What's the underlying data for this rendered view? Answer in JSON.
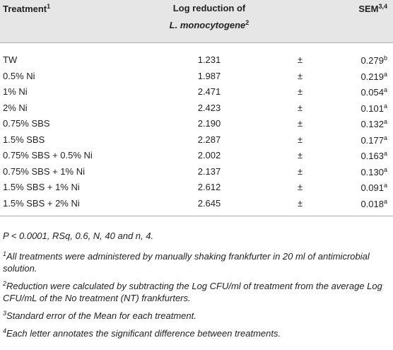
{
  "header": {
    "treatment": "Treatment",
    "treatment_note": "1",
    "log_reduction": [
      "Log reduction of",
      "L. monocytogene"
    ],
    "log_note": "2",
    "sem": "SEM",
    "sem_note": "3,4"
  },
  "table": {
    "rows": [
      {
        "treatment": "TW",
        "log_reduction": "1.231",
        "pm": "±",
        "sem": "0.279",
        "letter": "b"
      },
      {
        "treatment": "0.5% Ni",
        "log_reduction": "1.987",
        "pm": "±",
        "sem": "0.219",
        "letter": "a"
      },
      {
        "treatment": "1% Ni",
        "log_reduction": "2.471",
        "pm": "±",
        "sem": "0.054",
        "letter": "a"
      },
      {
        "treatment": "2% Ni",
        "log_reduction": "2.423",
        "pm": "±",
        "sem": "0.101",
        "letter": "a"
      },
      {
        "treatment": "0.75% SBS",
        "log_reduction": "2.190",
        "pm": "±",
        "sem": "0.132",
        "letter": "a"
      },
      {
        "treatment": "1.5% SBS",
        "log_reduction": "2.287",
        "pm": "±",
        "sem": "0.177",
        "letter": "a"
      },
      {
        "treatment": "0.75% SBS + 0.5% Ni",
        "log_reduction": "2.002",
        "pm": "±",
        "sem": "0.163",
        "letter": "a"
      },
      {
        "treatment": "0.75% SBS + 1% Ni",
        "log_reduction": "2.137",
        "pm": "±",
        "sem": "0.130",
        "letter": "a"
      },
      {
        "treatment": "1.5% SBS + 1% Ni",
        "log_reduction": "2.612",
        "pm": "±",
        "sem": "0.091",
        "letter": "a"
      },
      {
        "treatment": "1.5% SBS + 2% Ni",
        "log_reduction": "2.645",
        "pm": "±",
        "sem": "0.018",
        "letter": "a"
      }
    ]
  },
  "notes": [
    {
      "text": "P < 0.0001, RSq, 0.6, N, 40 and n, 4."
    },
    {
      "marker": "1",
      "text": "All treatments were administered by manually shaking frankfurter in 20 ml of antimicrobial solution."
    },
    {
      "marker": "2",
      "text": "Reduction were calculated by subtracting the Log CFU/ml of treatment from the average Log CFU/mL of the No treatment (NT) frankfurters."
    },
    {
      "marker": "3",
      "text": "Standard error of the Mean for each treatment."
    },
    {
      "marker": "4",
      "text": "Each letter annotates the significant difference between treatments."
    }
  ]
}
